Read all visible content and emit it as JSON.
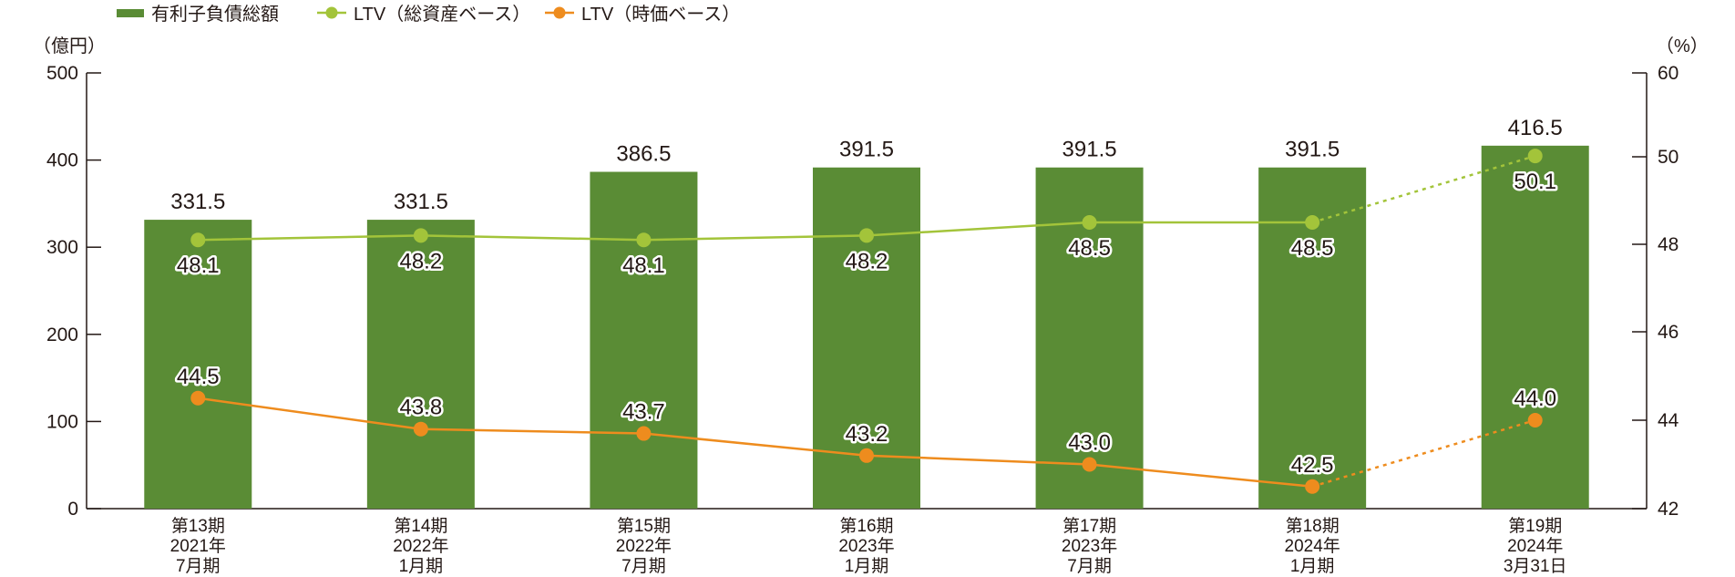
{
  "chart_data": {
    "type": "bar",
    "legend": [
      {
        "label": "有利子負債総額",
        "marker": "bar",
        "color": "#5a8c35"
      },
      {
        "label": "LTV（総資産ベース）",
        "marker": "line-dot",
        "color": "#a3c43a"
      },
      {
        "label": "LTV（時価ベース）",
        "marker": "line-dot",
        "color": "#ee8c1e"
      }
    ],
    "legend_position": "top-left",
    "y_left": {
      "unit_label": "（億円）",
      "ylim": [
        0,
        500
      ],
      "ticks": [
        "0",
        "100",
        "200",
        "300",
        "400",
        "500"
      ]
    },
    "y_right": {
      "unit_label": "（%）",
      "ylim": [
        42,
        60
      ],
      "ticks": [
        "42",
        "44",
        "46",
        "48",
        "50",
        "60"
      ]
    },
    "categories": [
      [
        "第13期",
        "2021年",
        "7月期"
      ],
      [
        "第14期",
        "2022年",
        "1月期"
      ],
      [
        "第15期",
        "2022年",
        "7月期"
      ],
      [
        "第16期",
        "2023年",
        "1月期"
      ],
      [
        "第17期",
        "2023年",
        "7月期"
      ],
      [
        "第18期",
        "2024年",
        "1月期"
      ],
      [
        "第19期",
        "2024年",
        "3月31日"
      ]
    ],
    "series": [
      {
        "name": "有利子負債総額",
        "type": "bar",
        "axis": "left",
        "color": "#5a8c35",
        "values": [
          331.5,
          331.5,
          386.5,
          391.5,
          391.5,
          391.5,
          416.5
        ],
        "labels": [
          "331.5",
          "331.5",
          "386.5",
          "391.5",
          "391.5",
          "391.5",
          "416.5"
        ]
      },
      {
        "name": "LTV（総資産ベース）",
        "type": "line",
        "axis": "right",
        "color": "#a3c43a",
        "values": [
          48.1,
          48.2,
          48.1,
          48.2,
          48.5,
          48.5,
          50.1
        ],
        "labels": [
          "48.1",
          "48.2",
          "48.1",
          "48.2",
          "48.5",
          "48.5",
          "50.1"
        ],
        "dashed_last_segment": true
      },
      {
        "name": "LTV（時価ベース）",
        "type": "line",
        "axis": "right",
        "color": "#ee8c1e",
        "values": [
          44.5,
          43.8,
          43.7,
          43.2,
          43.0,
          42.5,
          44.0
        ],
        "labels": [
          "44.5",
          "43.8",
          "43.7",
          "43.2",
          "43.0",
          "42.5",
          "44.0"
        ],
        "dashed_last_segment": true
      }
    ],
    "grid": false
  }
}
